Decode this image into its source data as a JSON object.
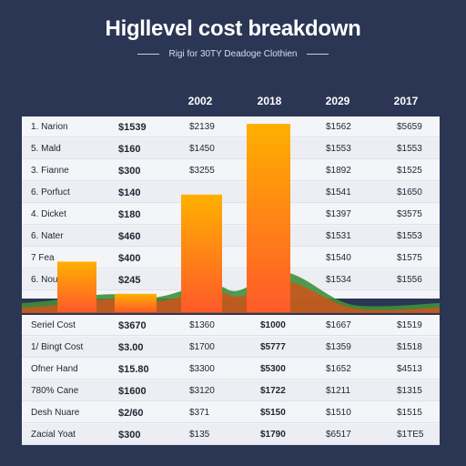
{
  "header": {
    "title": "Higllevel cost breakdown",
    "subtitle": "Rigi for 30TY Deadoge Clothien"
  },
  "colors": {
    "background": "#2b3654",
    "bar_top": "#ffb000",
    "bar_bottom": "#ff5a2a",
    "wave_green": "#3f8f3a",
    "wave_orange": "#c9561c"
  },
  "chart_data": {
    "type": "bar",
    "title": "Higllevel cost breakdown",
    "categories": [
      "2002",
      "2018",
      "2029",
      "2017"
    ],
    "bars": [
      {
        "category": "2002",
        "value": 55
      },
      {
        "category": "2002",
        "value": 20
      },
      {
        "category": "2018",
        "value": 128
      },
      {
        "category": "2018",
        "value": 205
      }
    ],
    "ylim": [
      0,
      210
    ],
    "grid": false,
    "legend": "none"
  },
  "table_top": {
    "rows": [
      {
        "label": "1.  Narion",
        "bold": "$1539",
        "c2": "$2139",
        "c4": "$1562",
        "c5": "$5659"
      },
      {
        "label": "5.  Mald",
        "bold": "$160",
        "c2": "$1450",
        "c4": "$1553",
        "c5": "$1553"
      },
      {
        "label": "3.  Fianne",
        "bold": "$300",
        "c2": "$3255",
        "c4": "$1892",
        "c5": "$1525"
      },
      {
        "label": "6.  Porfuct",
        "bold": "$140",
        "c2": "",
        "c4": "$1541",
        "c5": "$1650"
      },
      {
        "label": "4.  Dicket",
        "bold": "$180",
        "c2": "",
        "c4": "$1397",
        "c5": "$3575"
      },
      {
        "label": "6.  Nater",
        "bold": "$460",
        "c2": "",
        "c4": "$1531",
        "c5": "$1553"
      },
      {
        "label": "7    Fea",
        "bold": "$400",
        "c2": "",
        "c4": "$1540",
        "c5": "$1575"
      },
      {
        "label": "6.  Nou",
        "bold": "$245",
        "c2": "",
        "c4": "$1534",
        "c5": "$1556"
      }
    ]
  },
  "table_bottom": {
    "rows": [
      {
        "label": "Seriel Cost",
        "bold": "$3670",
        "c2": "$1360",
        "c3": "$1000",
        "c4": "$1667",
        "c5": "$1519"
      },
      {
        "label": "1/ Bingt Cost",
        "bold": "$3.00",
        "c2": "$1700",
        "c3": "$5777",
        "c4": "$1359",
        "c5": "$1518"
      },
      {
        "label": "Ofner Hand",
        "bold": "$15.80",
        "c2": "$3300",
        "c3": "$5300",
        "c4": "$1652",
        "c5": "$4513"
      },
      {
        "label": "780% Cane",
        "bold": "$1600",
        "c2": "$3120",
        "c3": "$1722",
        "c4": "$1211",
        "c5": "$1315"
      },
      {
        "label": "Desh Nuare",
        "bold": "$2/60",
        "c2": "$371",
        "c3": "$5150",
        "c4": "$1510",
        "c5": "$1515"
      },
      {
        "label": "Zacial Yoat",
        "bold": "$300",
        "c2": "$135",
        "c3": "$1790",
        "c4": "$6517",
        "c5": "$1TE5"
      }
    ]
  }
}
